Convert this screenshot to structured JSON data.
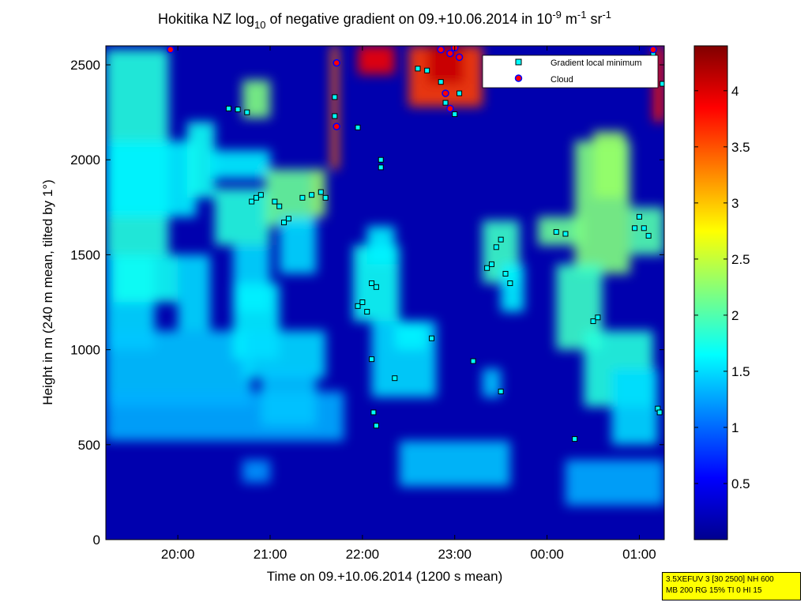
{
  "chart_data": {
    "type": "heatmap",
    "title": {
      "pre": "Hokitika NZ log",
      "sub": "10",
      "mid": " of negative gradient on 09.+10.06.2014 in 10",
      "sup1": "-9",
      "mid2": " m",
      "sup2": "-1",
      "mid3": " sr",
      "sup3": "-1"
    },
    "xlabel": "Time on 09.+10.06.2014 (1200 s mean)",
    "ylabel": "Height in m (240 m mean, tilted by 1°)",
    "xlim": [
      19.22,
      25.27
    ],
    "ylim": [
      0,
      2600
    ],
    "x_ticks": [
      {
        "value": 20.0,
        "label": "20:00"
      },
      {
        "value": 21.0,
        "label": "21:00"
      },
      {
        "value": 22.0,
        "label": "22:00"
      },
      {
        "value": 23.0,
        "label": "23:00"
      },
      {
        "value": 24.0,
        "label": "00:00"
      },
      {
        "value": 25.0,
        "label": "01:00"
      }
    ],
    "y_ticks": [
      {
        "value": 0,
        "label": "0"
      },
      {
        "value": 500,
        "label": "500"
      },
      {
        "value": 1000,
        "label": "1000"
      },
      {
        "value": 1500,
        "label": "1500"
      },
      {
        "value": 2000,
        "label": "2000"
      },
      {
        "value": 2500,
        "label": "2500"
      }
    ],
    "colorbar": {
      "range": [
        0,
        4.4
      ],
      "ticks": [
        {
          "value": 0.5,
          "label": "0.5"
        },
        {
          "value": 1,
          "label": "1"
        },
        {
          "value": 1.5,
          "label": "1.5"
        },
        {
          "value": 2,
          "label": "2"
        },
        {
          "value": 2.5,
          "label": "2.5"
        },
        {
          "value": 3,
          "label": "3"
        },
        {
          "value": 3.5,
          "label": "3.5"
        },
        {
          "value": 4,
          "label": "4"
        }
      ],
      "colormap": "jet"
    },
    "background_value": 0.2,
    "regions": [
      {
        "x": [
          19.22,
          19.9
        ],
        "y": [
          1500,
          2580
        ],
        "value": 1.8
      },
      {
        "x": [
          19.22,
          19.75
        ],
        "y": [
          1000,
          1500
        ],
        "value": 1.5
      },
      {
        "x": [
          19.3,
          20.0
        ],
        "y": [
          1250,
          1500
        ],
        "value": 1.7
      },
      {
        "x": [
          19.22,
          20.8
        ],
        "y": [
          700,
          1100
        ],
        "value": 1.4
      },
      {
        "x": [
          19.22,
          21.8
        ],
        "y": [
          520,
          780
        ],
        "value": 1.3
      },
      {
        "x": [
          19.22,
          20.2
        ],
        "y": [
          1700,
          2100
        ],
        "value": 1.6
      },
      {
        "x": [
          20.0,
          20.35
        ],
        "y": [
          1100,
          1500
        ],
        "value": 1.5
      },
      {
        "x": [
          20.1,
          20.4
        ],
        "y": [
          1800,
          2200
        ],
        "value": 1.7
      },
      {
        "x": [
          20.35,
          21.0
        ],
        "y": [
          1900,
          2050
        ],
        "value": 1.6
      },
      {
        "x": [
          20.4,
          21.0
        ],
        "y": [
          1550,
          1850
        ],
        "value": 1.8
      },
      {
        "x": [
          20.6,
          21.0
        ],
        "y": [
          1200,
          1550
        ],
        "value": 1.5
      },
      {
        "x": [
          20.6,
          21.1
        ],
        "y": [
          950,
          1350
        ],
        "value": 1.6
      },
      {
        "x": [
          20.7,
          21.6
        ],
        "y": [
          850,
          1100
        ],
        "value": 1.5
      },
      {
        "x": [
          20.9,
          21.5
        ],
        "y": [
          600,
          900
        ],
        "value": 1.4
      },
      {
        "x": [
          20.95,
          21.45
        ],
        "y": [
          1650,
          1950
        ],
        "value": 2.1
      },
      {
        "x": [
          21.45,
          21.6
        ],
        "y": [
          1700,
          1950
        ],
        "value": 2.3
      },
      {
        "x": [
          21.1,
          21.5
        ],
        "y": [
          1400,
          1700
        ],
        "value": 1.5
      },
      {
        "x": [
          20.7,
          21.0
        ],
        "y": [
          2220,
          2420
        ],
        "value": 2.2
      },
      {
        "x": [
          20.7,
          21.0
        ],
        "y": [
          300,
          420
        ],
        "value": 1.2
      },
      {
        "x": [
          21.9,
          22.4
        ],
        "y": [
          1150,
          1550
        ],
        "value": 1.7
      },
      {
        "x": [
          22.05,
          22.35
        ],
        "y": [
          1450,
          1650
        ],
        "value": 1.6
      },
      {
        "x": [
          22.1,
          22.8
        ],
        "y": [
          750,
          1150
        ],
        "value": 1.5
      },
      {
        "x": [
          22.35,
          22.7
        ],
        "y": [
          1000,
          1150
        ],
        "value": 1.6
      },
      {
        "x": [
          22.4,
          23.6
        ],
        "y": [
          280,
          520
        ],
        "value": 1.4
      },
      {
        "x": [
          23.3,
          23.7
        ],
        "y": [
          1350,
          1680
        ],
        "value": 1.9
      },
      {
        "x": [
          23.5,
          23.75
        ],
        "y": [
          1200,
          1450
        ],
        "value": 1.6
      },
      {
        "x": [
          23.3,
          23.5
        ],
        "y": [
          750,
          900
        ],
        "value": 1.4
      },
      {
        "x": [
          23.9,
          24.4
        ],
        "y": [
          1550,
          1700
        ],
        "value": 2.1
      },
      {
        "x": [
          24.3,
          24.9
        ],
        "y": [
          1400,
          2100
        ],
        "value": 2.2
      },
      {
        "x": [
          24.5,
          24.85
        ],
        "y": [
          1800,
          2150
        ],
        "value": 2.3
      },
      {
        "x": [
          24.1,
          24.6
        ],
        "y": [
          1000,
          1450
        ],
        "value": 1.9
      },
      {
        "x": [
          24.4,
          25.15
        ],
        "y": [
          700,
          1100
        ],
        "value": 1.8
      },
      {
        "x": [
          24.7,
          25.2
        ],
        "y": [
          500,
          900
        ],
        "value": 1.5
      },
      {
        "x": [
          24.9,
          25.27
        ],
        "y": [
          1500,
          1750
        ],
        "value": 2.0
      },
      {
        "x": [
          24.2,
          25.27
        ],
        "y": [
          180,
          420
        ],
        "value": 1.3
      },
      {
        "x": [
          22.5,
          23.3
        ],
        "y": [
          2280,
          2600
        ],
        "value": 3.6
      },
      {
        "x": [
          22.7,
          23.1
        ],
        "y": [
          2400,
          2600
        ],
        "value": 4.1
      },
      {
        "x": [
          21.95,
          22.35
        ],
        "y": [
          2450,
          2600
        ],
        "value": 3.9
      },
      {
        "x": [
          25.15,
          25.27
        ],
        "y": [
          2200,
          2600
        ],
        "value": 3.8
      },
      {
        "x": [
          21.66,
          21.74
        ],
        "y": [
          1950,
          2600
        ],
        "value": 3.4
      }
    ],
    "series": [
      {
        "name": "Gradient local minimum",
        "marker": "square",
        "color": "#00ffff",
        "points": [
          [
            20.55,
            2270
          ],
          [
            20.65,
            2265
          ],
          [
            20.75,
            2250
          ],
          [
            20.8,
            1780
          ],
          [
            20.85,
            1800
          ],
          [
            20.9,
            1815
          ],
          [
            21.05,
            1780
          ],
          [
            21.1,
            1755
          ],
          [
            21.15,
            1670
          ],
          [
            21.2,
            1690
          ],
          [
            21.35,
            1800
          ],
          [
            21.45,
            1815
          ],
          [
            21.55,
            1830
          ],
          [
            21.6,
            1800
          ],
          [
            21.7,
            2330
          ],
          [
            21.7,
            2230
          ],
          [
            21.95,
            2170
          ],
          [
            21.95,
            1230
          ],
          [
            22.0,
            1250
          ],
          [
            22.05,
            1200
          ],
          [
            22.1,
            1350
          ],
          [
            22.15,
            1330
          ],
          [
            22.1,
            950
          ],
          [
            22.12,
            670
          ],
          [
            22.15,
            600
          ],
          [
            22.2,
            1960
          ],
          [
            22.2,
            2000
          ],
          [
            22.35,
            850
          ],
          [
            22.6,
            2480
          ],
          [
            22.7,
            2470
          ],
          [
            22.75,
            1060
          ],
          [
            22.85,
            2410
          ],
          [
            22.9,
            2300
          ],
          [
            23.0,
            2240
          ],
          [
            23.05,
            2350
          ],
          [
            23.2,
            940
          ],
          [
            23.35,
            1430
          ],
          [
            23.4,
            1450
          ],
          [
            23.45,
            1540
          ],
          [
            23.5,
            1580
          ],
          [
            23.55,
            1400
          ],
          [
            23.6,
            1350
          ],
          [
            23.5,
            780
          ],
          [
            24.1,
            1620
          ],
          [
            24.2,
            1610
          ],
          [
            24.3,
            530
          ],
          [
            24.5,
            1150
          ],
          [
            24.55,
            1170
          ],
          [
            24.95,
            1640
          ],
          [
            25.0,
            1700
          ],
          [
            25.05,
            1640
          ],
          [
            25.1,
            1600
          ],
          [
            25.2,
            690
          ],
          [
            25.22,
            670
          ],
          [
            25.25,
            2400
          ],
          [
            25.15,
            2560
          ]
        ]
      },
      {
        "name": "Cloud",
        "marker": "circle",
        "color": "#ff0000",
        "points": [
          [
            19.92,
            2580
          ],
          [
            21.72,
            2510
          ],
          [
            21.72,
            2175
          ],
          [
            22.85,
            2580
          ],
          [
            22.95,
            2560
          ],
          [
            23.0,
            2590
          ],
          [
            23.05,
            2540
          ],
          [
            22.9,
            2350
          ],
          [
            22.95,
            2270
          ],
          [
            25.15,
            2580
          ]
        ]
      }
    ],
    "legend": {
      "placement": "top-right",
      "entries": [
        "Gradient local minimum",
        "Cloud"
      ]
    }
  },
  "infobox": {
    "line1": "3.5XEFUV 3 [30 2500] NH 600",
    "line2": "MB 200 RG 15% TI 0 HI 15"
  }
}
